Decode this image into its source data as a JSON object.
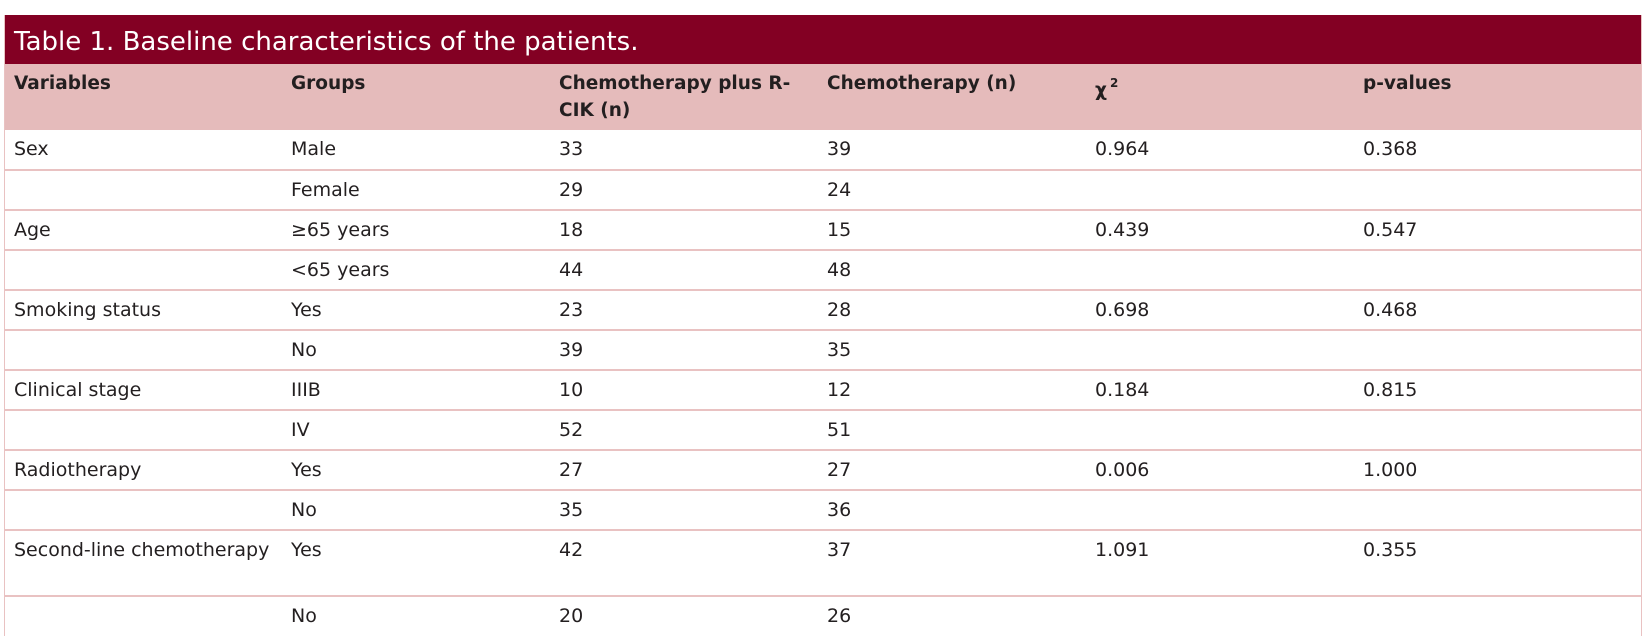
{
  "title": "Table 1. Baseline characteristics of the patients.",
  "colors": {
    "title_background": "#830023",
    "header_background": "#e5bbbb",
    "row_border": "#e9c2c2"
  },
  "headers": {
    "variables": "Variables",
    "groups": "Groups",
    "chemo_rcik": "Chemotherapy plus R-CIK (n)",
    "chemo": "Chemotherapy (n)",
    "chi_symbol": "χ",
    "chi_exponent": "2",
    "p_values": "p-values"
  },
  "rows": [
    {
      "variable": "Sex",
      "group": "Male",
      "chemo_rcik": "33",
      "chemo": "39",
      "chi2": "0.964",
      "p": "0.368"
    },
    {
      "variable": "",
      "group": "Female",
      "chemo_rcik": "29",
      "chemo": "24",
      "chi2": "",
      "p": ""
    },
    {
      "variable": "Age",
      "group": "≥65 years",
      "chemo_rcik": "18",
      "chemo": "15",
      "chi2": "0.439",
      "p": "0.547"
    },
    {
      "variable": "",
      "group": "<65 years",
      "chemo_rcik": "44",
      "chemo": "48",
      "chi2": "",
      "p": ""
    },
    {
      "variable": "Smoking status",
      "group": "Yes",
      "chemo_rcik": "23",
      "chemo": "28",
      "chi2": "0.698",
      "p": "0.468"
    },
    {
      "variable": "",
      "group": "No",
      "chemo_rcik": "39",
      "chemo": "35",
      "chi2": "",
      "p": ""
    },
    {
      "variable": "Clinical stage",
      "group": "IIIB",
      "chemo_rcik": "10",
      "chemo": "12",
      "chi2": "0.184",
      "p": "0.815"
    },
    {
      "variable": "",
      "group": "IV",
      "chemo_rcik": "52",
      "chemo": "51",
      "chi2": "",
      "p": ""
    },
    {
      "variable": "Radiotherapy",
      "group": "Yes",
      "chemo_rcik": "27",
      "chemo": "27",
      "chi2": "0.006",
      "p": "1.000"
    },
    {
      "variable": "",
      "group": "No",
      "chemo_rcik": "35",
      "chemo": "36",
      "chi2": "",
      "p": ""
    },
    {
      "variable": "Second-line chemotherapy",
      "group": "Yes",
      "chemo_rcik": "42",
      "chemo": "37",
      "chi2": "1.091",
      "p": "0.355"
    },
    {
      "variable": "",
      "group": "No",
      "chemo_rcik": "20",
      "chemo": "26",
      "chi2": "",
      "p": ""
    }
  ]
}
